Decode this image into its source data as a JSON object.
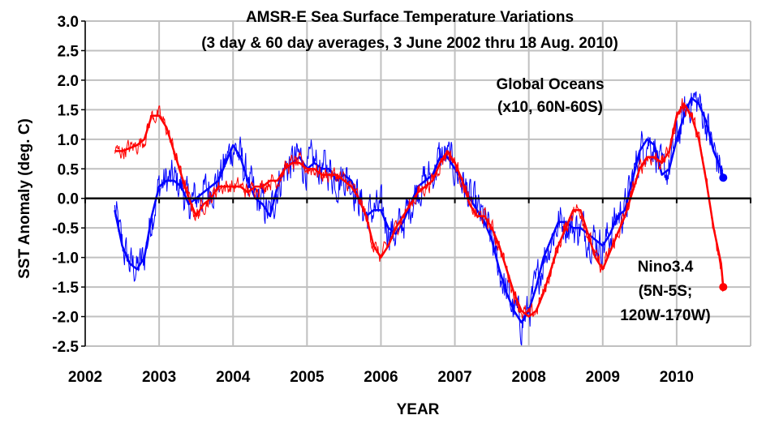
{
  "chart_data": {
    "type": "line",
    "title": "AMSR-E Sea Surface Temperature Variations",
    "subtitle": "(3 day & 60 day averages, 3 June 2002 thru 18 Aug. 2010)",
    "xlabel": "YEAR",
    "ylabel": "SST Anomaly (deg. C)",
    "xlim": [
      2002,
      2011
    ],
    "ylim": [
      -2.5,
      3.0
    ],
    "x_tick_labels": [
      "2002",
      "2003",
      "2004",
      "2005",
      "2006",
      "2007",
      "2008",
      "2009",
      "2010"
    ],
    "y_tick_labels": [
      "3.0",
      "2.5",
      "2.0",
      "1.5",
      "1.0",
      "0.5",
      "0.0",
      "-0.5",
      "-1.0",
      "-1.5",
      "-2.0",
      "-2.5"
    ],
    "grid": true,
    "colors": {
      "global": "#0000ff",
      "nino": "#ff0000",
      "grid": "#c0c0c0"
    },
    "series": [
      {
        "key": "global",
        "label_line1": "Global Oceans",
        "label_line2": "(x10, 60N-60S)",
        "x": [
          2002.4,
          2002.5,
          2002.6,
          2002.7,
          2002.8,
          2002.9,
          2003.0,
          2003.1,
          2003.2,
          2003.3,
          2003.4,
          2003.5,
          2003.6,
          2003.7,
          2003.8,
          2003.9,
          2004.0,
          2004.1,
          2004.2,
          2004.3,
          2004.4,
          2004.5,
          2004.6,
          2004.7,
          2004.8,
          2004.9,
          2005.0,
          2005.1,
          2005.2,
          2005.3,
          2005.4,
          2005.5,
          2005.6,
          2005.7,
          2005.8,
          2005.9,
          2006.0,
          2006.1,
          2006.2,
          2006.3,
          2006.4,
          2006.5,
          2006.6,
          2006.7,
          2006.8,
          2006.9,
          2007.0,
          2007.1,
          2007.2,
          2007.3,
          2007.4,
          2007.5,
          2007.6,
          2007.7,
          2007.8,
          2007.9,
          2008.0,
          2008.1,
          2008.2,
          2008.3,
          2008.4,
          2008.5,
          2008.6,
          2008.7,
          2008.8,
          2008.9,
          2009.0,
          2009.1,
          2009.2,
          2009.3,
          2009.4,
          2009.5,
          2009.6,
          2009.7,
          2009.8,
          2009.9,
          2010.0,
          2010.1,
          2010.2,
          2010.3,
          2010.4,
          2010.5,
          2010.6,
          2010.63
        ],
        "y": [
          -0.2,
          -0.8,
          -1.1,
          -1.2,
          -1.0,
          -0.3,
          0.2,
          0.3,
          0.3,
          0.2,
          -0.1,
          0.0,
          0.1,
          0.2,
          0.3,
          0.6,
          0.9,
          0.7,
          0.3,
          0.0,
          -0.1,
          -0.3,
          0.2,
          0.5,
          0.6,
          0.7,
          0.5,
          0.6,
          0.5,
          0.5,
          0.3,
          0.4,
          0.3,
          0.0,
          -0.3,
          -0.2,
          -0.2,
          -0.5,
          -0.6,
          -0.4,
          -0.1,
          0.2,
          0.3,
          0.4,
          0.7,
          0.7,
          0.5,
          0.3,
          0.0,
          -0.2,
          -0.4,
          -0.7,
          -1.2,
          -1.6,
          -1.9,
          -2.1,
          -1.9,
          -1.5,
          -1.0,
          -0.7,
          -0.4,
          -0.4,
          -0.5,
          -0.5,
          -0.6,
          -0.7,
          -0.8,
          -0.6,
          -0.3,
          -0.2,
          0.3,
          0.8,
          1.0,
          0.9,
          0.4,
          0.5,
          1.0,
          1.4,
          1.7,
          1.6,
          1.3,
          0.8,
          0.5,
          0.35
        ]
      },
      {
        "key": "nino",
        "label_line1": "Nino3.4",
        "label_line2": "(5N-5S;",
        "label_line3": "120W-170W)",
        "x": [
          2002.4,
          2002.5,
          2002.6,
          2002.7,
          2002.8,
          2002.9,
          2003.0,
          2003.1,
          2003.2,
          2003.3,
          2003.4,
          2003.5,
          2003.6,
          2003.7,
          2003.8,
          2003.9,
          2004.0,
          2004.1,
          2004.2,
          2004.3,
          2004.4,
          2004.5,
          2004.6,
          2004.7,
          2004.8,
          2004.9,
          2005.0,
          2005.1,
          2005.2,
          2005.3,
          2005.4,
          2005.5,
          2005.6,
          2005.7,
          2005.8,
          2005.9,
          2006.0,
          2006.1,
          2006.2,
          2006.3,
          2006.4,
          2006.5,
          2006.6,
          2006.7,
          2006.8,
          2006.9,
          2007.0,
          2007.1,
          2007.2,
          2007.3,
          2007.4,
          2007.5,
          2007.6,
          2007.7,
          2007.8,
          2007.9,
          2008.0,
          2008.1,
          2008.2,
          2008.3,
          2008.4,
          2008.5,
          2008.6,
          2008.7,
          2008.8,
          2008.9,
          2009.0,
          2009.1,
          2009.2,
          2009.3,
          2009.4,
          2009.5,
          2009.6,
          2009.7,
          2009.8,
          2009.9,
          2010.0,
          2010.1,
          2010.2,
          2010.3,
          2010.4,
          2010.5,
          2010.6,
          2010.63
        ],
        "y": [
          0.8,
          0.8,
          0.85,
          0.9,
          1.0,
          1.4,
          1.4,
          1.2,
          0.8,
          0.4,
          0.0,
          -0.3,
          -0.1,
          0.0,
          0.2,
          0.2,
          0.2,
          0.2,
          0.1,
          0.2,
          0.2,
          0.3,
          0.3,
          0.5,
          0.6,
          0.6,
          0.5,
          0.5,
          0.4,
          0.4,
          0.4,
          0.3,
          0.2,
          0.0,
          -0.3,
          -0.8,
          -1.0,
          -0.8,
          -0.5,
          -0.3,
          -0.1,
          0.1,
          0.2,
          0.3,
          0.6,
          0.8,
          0.6,
          0.3,
          -0.1,
          -0.3,
          -0.3,
          -0.5,
          -0.8,
          -1.2,
          -1.6,
          -1.9,
          -2.0,
          -1.9,
          -1.6,
          -1.2,
          -0.8,
          -0.5,
          -0.2,
          -0.2,
          -0.6,
          -1.0,
          -1.2,
          -0.9,
          -0.6,
          -0.3,
          0.1,
          0.5,
          0.7,
          0.7,
          0.6,
          0.8,
          1.4,
          1.6,
          1.4,
          1.0,
          0.3,
          -0.5,
          -1.1,
          -1.5
        ]
      }
    ]
  }
}
